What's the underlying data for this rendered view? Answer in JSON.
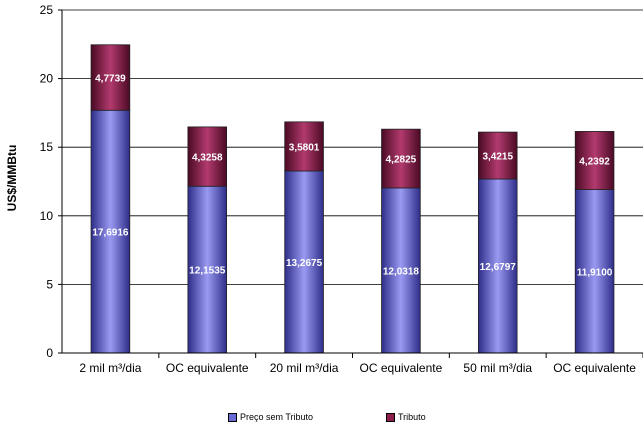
{
  "chart_data": {
    "type": "bar",
    "stacked": true,
    "categories": [
      "2 mil m³/dia",
      "OC equivalente",
      "20 mil m³/dia",
      "OC equivalente",
      "50 mil m³/dia",
      "OC equivalente"
    ],
    "series": [
      {
        "name": "Preço sem Tributo",
        "color": "#6b6bd6",
        "values": [
          17.6916,
          12.1535,
          13.2675,
          12.0318,
          12.6797,
          11.91
        ],
        "labels": [
          "17,6916",
          "12,1535",
          "13,2675",
          "12,0318",
          "12,6797",
          "11,9100"
        ]
      },
      {
        "name": "Tributo",
        "color": "#8e1c4c",
        "values": [
          4.7739,
          4.3258,
          3.5801,
          4.2825,
          3.4215,
          4.2392
        ],
        "labels": [
          "4,7739",
          "4,3258",
          "3,5801",
          "4,2825",
          "3,4215",
          "4,2392"
        ]
      }
    ],
    "ylabel": "US$/MMBtu",
    "ylim": [
      0,
      25
    ],
    "yticks": [
      0,
      5,
      10,
      15,
      20,
      25
    ],
    "grid": "horizontal",
    "legend_position": "bottom"
  }
}
